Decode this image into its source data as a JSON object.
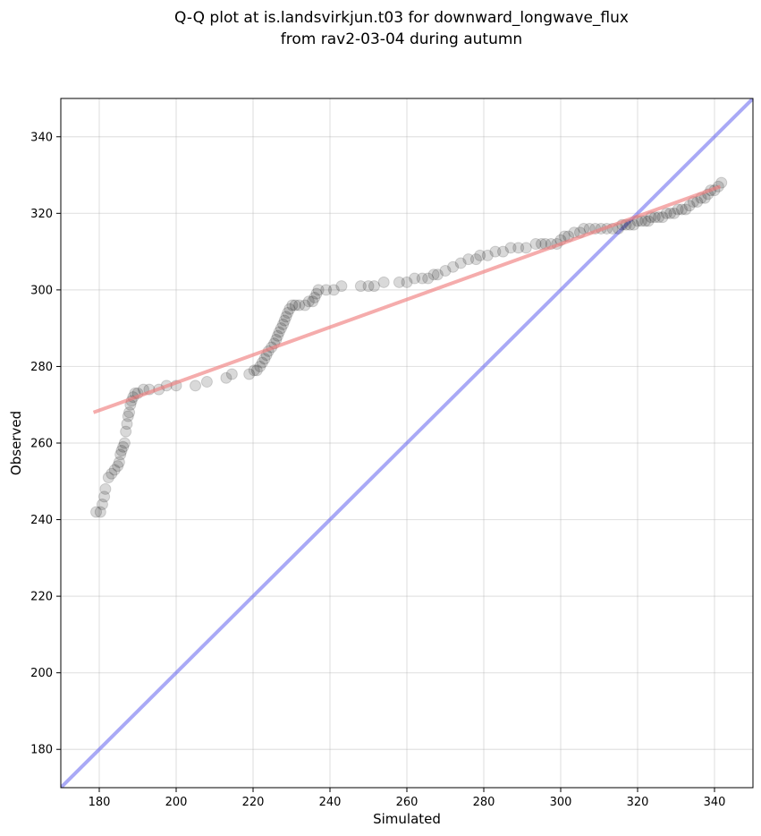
{
  "chart_data": {
    "type": "scatter",
    "title": "Q-Q plot at is.landsvirkjun.t03 for downward_longwave_flux",
    "subtitle": "from rav2-03-04 during autumn",
    "xlabel": "Simulated",
    "ylabel": "Observed",
    "xlim": [
      170,
      350
    ],
    "ylim": [
      170,
      350
    ],
    "xticks": [
      180,
      200,
      220,
      240,
      260,
      280,
      300,
      320,
      340
    ],
    "yticks": [
      180,
      200,
      220,
      240,
      260,
      280,
      300,
      320,
      340
    ],
    "grid": true,
    "colors": {
      "points": "#000000",
      "fit_line": "#f08080",
      "identity_line": "#6f6ff0"
    },
    "series": [
      {
        "kind": "quantiles",
        "points": [
          [
            179.2,
            242
          ],
          [
            180.3,
            242
          ],
          [
            180.8,
            244
          ],
          [
            181.3,
            246
          ],
          [
            181.6,
            248
          ],
          [
            182.4,
            251
          ],
          [
            183.2,
            252
          ],
          [
            184.0,
            253
          ],
          [
            184.8,
            254
          ],
          [
            185.2,
            255
          ],
          [
            185.5,
            257
          ],
          [
            185.8,
            258
          ],
          [
            186.2,
            259
          ],
          [
            186.6,
            260
          ],
          [
            186.9,
            263
          ],
          [
            187.2,
            265
          ],
          [
            187.5,
            267
          ],
          [
            187.8,
            268
          ],
          [
            188.1,
            270
          ],
          [
            188.4,
            271
          ],
          [
            188.8,
            272
          ],
          [
            189.3,
            273
          ],
          [
            190.0,
            273
          ],
          [
            191.5,
            274
          ],
          [
            193.0,
            274
          ],
          [
            195.5,
            274
          ],
          [
            197.5,
            275
          ],
          [
            200.0,
            275
          ],
          [
            205.0,
            275
          ],
          [
            208.0,
            276
          ],
          [
            213.0,
            277
          ],
          [
            214.5,
            278
          ],
          [
            219.0,
            278
          ],
          [
            220.3,
            279
          ],
          [
            221.0,
            279
          ],
          [
            221.8,
            280
          ],
          [
            222.4,
            281
          ],
          [
            223.0,
            282
          ],
          [
            223.5,
            283
          ],
          [
            224.0,
            284
          ],
          [
            224.8,
            285
          ],
          [
            225.5,
            286
          ],
          [
            226.0,
            287
          ],
          [
            226.4,
            288
          ],
          [
            226.8,
            289
          ],
          [
            227.3,
            290
          ],
          [
            227.8,
            291
          ],
          [
            228.2,
            292
          ],
          [
            228.6,
            293
          ],
          [
            229.0,
            294
          ],
          [
            229.5,
            295
          ],
          [
            230.2,
            296
          ],
          [
            231.0,
            296
          ],
          [
            232.0,
            296
          ],
          [
            233.5,
            296
          ],
          [
            234.5,
            297
          ],
          [
            235.5,
            297
          ],
          [
            236.0,
            298
          ],
          [
            236.5,
            299
          ],
          [
            237.0,
            300
          ],
          [
            239.0,
            300
          ],
          [
            241.0,
            300
          ],
          [
            243.0,
            301
          ],
          [
            248.0,
            301
          ],
          [
            250.0,
            301
          ],
          [
            251.5,
            301
          ],
          [
            254.0,
            302
          ],
          [
            258.0,
            302
          ],
          [
            260.0,
            302
          ],
          [
            262.0,
            303
          ],
          [
            264.0,
            303
          ],
          [
            265.5,
            303
          ],
          [
            267.0,
            304
          ],
          [
            268.0,
            304
          ],
          [
            270.0,
            305
          ],
          [
            272.0,
            306
          ],
          [
            274.0,
            307
          ],
          [
            276.0,
            308
          ],
          [
            278.0,
            308
          ],
          [
            279.0,
            309
          ],
          [
            281.0,
            309
          ],
          [
            283.0,
            310
          ],
          [
            285.0,
            310
          ],
          [
            287.0,
            311
          ],
          [
            289.0,
            311
          ],
          [
            291.0,
            311
          ],
          [
            293.5,
            312
          ],
          [
            295.0,
            312
          ],
          [
            296.0,
            312
          ],
          [
            297.5,
            312
          ],
          [
            299.0,
            312
          ],
          [
            300.0,
            313
          ],
          [
            301.0,
            314
          ],
          [
            302.0,
            314
          ],
          [
            303.5,
            315
          ],
          [
            305.0,
            315
          ],
          [
            306.0,
            316
          ],
          [
            307.5,
            316
          ],
          [
            309.0,
            316
          ],
          [
            310.5,
            316
          ],
          [
            312.0,
            316
          ],
          [
            313.5,
            316
          ],
          [
            315.0,
            316
          ],
          [
            316.0,
            317
          ],
          [
            317.0,
            317
          ],
          [
            318.0,
            317
          ],
          [
            319.0,
            317
          ],
          [
            320.0,
            318
          ],
          [
            321.0,
            318
          ],
          [
            322.0,
            318
          ],
          [
            322.8,
            318
          ],
          [
            323.5,
            319
          ],
          [
            324.5,
            319
          ],
          [
            325.5,
            319
          ],
          [
            326.5,
            319
          ],
          [
            327.5,
            320
          ],
          [
            328.5,
            320
          ],
          [
            329.5,
            320
          ],
          [
            330.5,
            321
          ],
          [
            331.5,
            321
          ],
          [
            332.5,
            321
          ],
          [
            333.5,
            322
          ],
          [
            334.5,
            323
          ],
          [
            335.5,
            323
          ],
          [
            336.5,
            324
          ],
          [
            337.5,
            324
          ],
          [
            338.3,
            325
          ],
          [
            339.0,
            326
          ],
          [
            340.0,
            326
          ],
          [
            341.0,
            327
          ],
          [
            341.8,
            328
          ]
        ]
      },
      {
        "kind": "fit_line",
        "x": [
          178.5,
          341.5
        ],
        "y": [
          268,
          327
        ]
      },
      {
        "kind": "identity_line",
        "x": [
          170,
          350
        ],
        "y": [
          170,
          350
        ]
      }
    ]
  }
}
